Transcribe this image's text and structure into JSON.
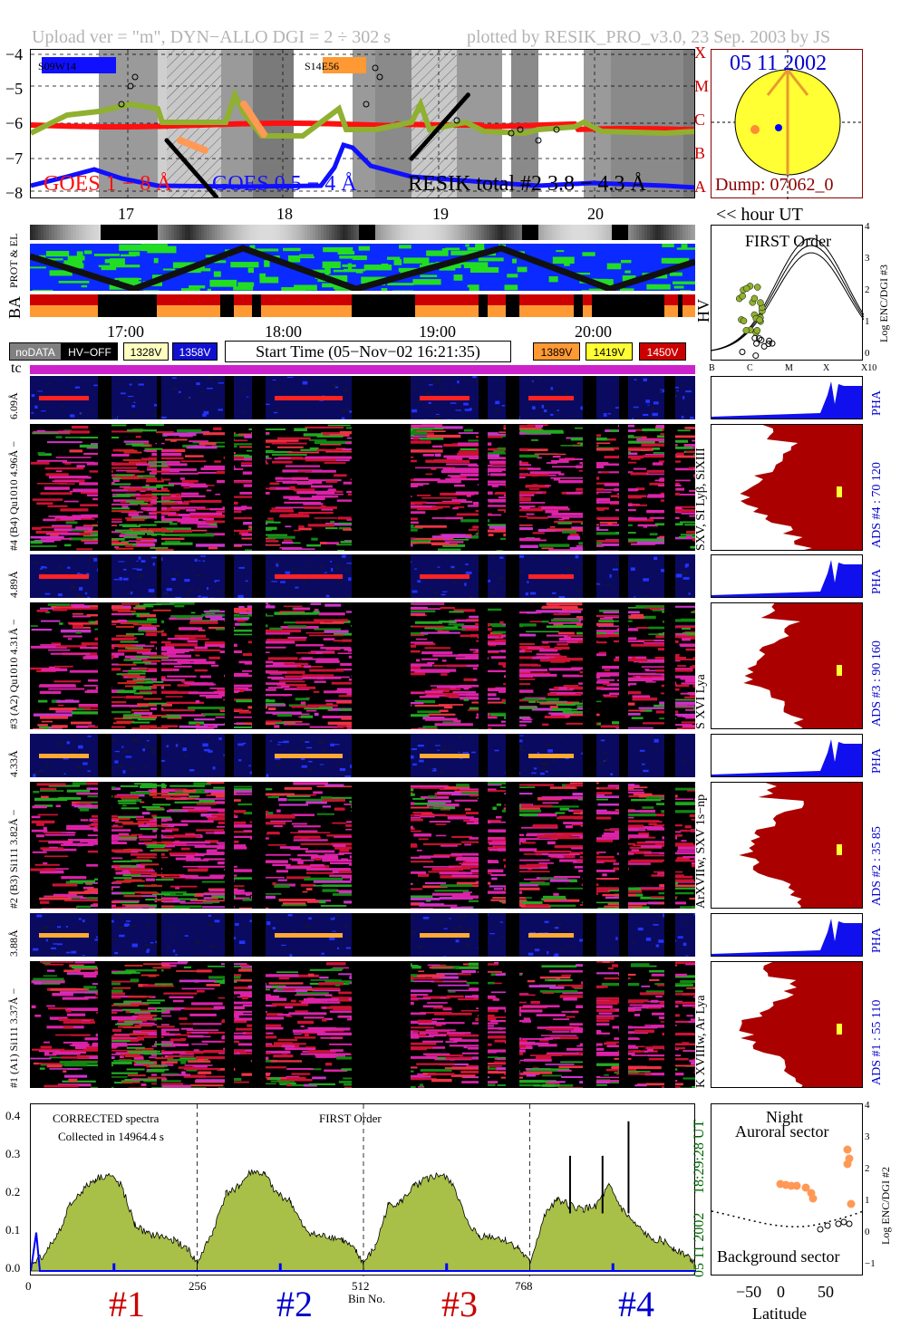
{
  "header": {
    "left": "Upload ver = \"m\", DYN−ALLO DGI =   2 ÷ 302 s",
    "right": "plotted by RESIK_PRO_v3.0, 23 Sep. 2003 by JS"
  },
  "goes_panel": {
    "yticks": [
      "−4",
      "−5",
      "−6",
      "−7",
      "−8"
    ],
    "class_letters": [
      "X",
      "M",
      "C",
      "B",
      "A"
    ],
    "legend_long": "GOES 1 − 8 Å",
    "legend_short": "GOES 0.5 − 4 Å",
    "legend_resik": "RESIK total #2  3.8 − 4.3 Å",
    "region1": "S09W14",
    "region2": "S14E56",
    "hour_labels": [
      "17",
      "18",
      "19",
      "20"
    ],
    "hour_unit": "<< hour UT"
  },
  "sun_panel": {
    "date": "05 11 2002",
    "dump": "Dump: 07062_0"
  },
  "status_rows": {
    "prot_el": "PROT & EL",
    "ba": "BA",
    "hv": "HV",
    "time_labels": [
      "17:00",
      "18:00",
      "19:00",
      "20:00"
    ]
  },
  "keys": {
    "nodata": "noDATA",
    "hvoff": "HV−OFF",
    "v1328": "1328V",
    "v1358": "1358V",
    "start_time": "Start Time (05−Nov−02 16:21:35)",
    "v1389": "1389V",
    "v1419": "1419V",
    "v1450": "1450V",
    "colors": {
      "nodata": "#808080",
      "hvoff": "#000000",
      "v1328": "#ffffc0",
      "v1358": "#1010d0",
      "v1389": "#ff9933",
      "v1419": "#ffff33",
      "v1450": "#cc0000"
    }
  },
  "first_order": {
    "title": "FIRST Order",
    "ylabel": "Log ENC/DGI #3",
    "yticks": [
      "4",
      "3",
      "2",
      "1",
      "0"
    ],
    "xticks": [
      "B",
      "C",
      "M",
      "X",
      "X10"
    ]
  },
  "tc_label": "tc",
  "detectors": [
    {
      "pha_label": "6.09Å",
      "range_label": "#4 (B4) Qu1010 4.96Å −",
      "line_label": "SXV, SI Lyβ, SiXIII",
      "ads_label": "ADS #4 :   70 120",
      "pha": "PHA"
    },
    {
      "pha_label": "4.89Å",
      "range_label": "#3 (A2) Qu1010 4.31Å −",
      "line_label": "S XVI Lya",
      "ads_label": "ADS #3 :   90 160",
      "pha": "PHA"
    },
    {
      "pha_label": "4.33Å",
      "range_label": "#2 (B3) Si111 3.82Å −",
      "line_label": "ArXVIIw, SXV 1s−np",
      "ads_label": "ADS #2 :   35  85",
      "pha": "PHA"
    },
    {
      "pha_label": "3.88Å",
      "range_label": "#1 (A1) Si111 3.37Å −",
      "line_label": "K XVIIIw, Ar Lya",
      "ads_label": "ADS #1 :   55 110",
      "pha": "PHA"
    }
  ],
  "spectrum": {
    "title": "CORRECTED spectra",
    "collected": "Collected in 14964.4 s",
    "order": "FIRST Order",
    "yticks": [
      "0.4",
      "0.3",
      "0.2",
      "0.1",
      "0.0"
    ],
    "xticks": [
      "0",
      "256",
      "512",
      "768"
    ],
    "xlabel": "Bin No.",
    "date_label": "05 11 2002",
    "time_label": "18:29:28 UT",
    "channels": [
      "#1",
      "#2",
      "#3",
      "#4"
    ],
    "channel_colors": [
      "#cc0000",
      "#0000cc",
      "#cc0000",
      "#0000cc"
    ]
  },
  "latitude": {
    "night": "Night",
    "auroral": "Auroral sector",
    "background": "Background sector",
    "ylabel": "Log ENC/DGI #2",
    "yticks": [
      "4",
      "3",
      "2",
      "1",
      "0",
      "−1"
    ],
    "xticks": [
      "−50",
      "0",
      "50"
    ],
    "xlabel": "Latitude"
  },
  "chart_data": {
    "type": "line",
    "title": "",
    "xlabel": "Bin No.",
    "ylabel": "",
    "xlim": [
      0,
      1024
    ],
    "ylim": [
      0,
      0.42
    ],
    "series": [
      {
        "name": "#1",
        "x": [
          0,
          20,
          40,
          60,
          80,
          100,
          120,
          140,
          160,
          180,
          200,
          220,
          240,
          256
        ],
        "values": [
          0.02,
          0.04,
          0.09,
          0.17,
          0.21,
          0.24,
          0.25,
          0.22,
          0.12,
          0.095,
          0.09,
          0.08,
          0.06,
          0.02
        ]
      },
      {
        "name": "#2",
        "x": [
          256,
          280,
          300,
          320,
          340,
          360,
          380,
          400,
          420,
          440,
          460,
          480,
          500,
          512
        ],
        "values": [
          0.02,
          0.1,
          0.2,
          0.22,
          0.26,
          0.25,
          0.2,
          0.18,
          0.11,
          0.09,
          0.09,
          0.08,
          0.05,
          0.02
        ]
      },
      {
        "name": "#3",
        "x": [
          512,
          530,
          550,
          570,
          590,
          610,
          630,
          650,
          670,
          690,
          710,
          730,
          750,
          768
        ],
        "values": [
          0.02,
          0.06,
          0.17,
          0.18,
          0.22,
          0.24,
          0.25,
          0.23,
          0.13,
          0.09,
          0.09,
          0.08,
          0.06,
          0.02
        ]
      },
      {
        "name": "#4",
        "x": [
          768,
          790,
          810,
          830,
          850,
          870,
          890,
          910,
          930,
          950,
          970,
          990,
          1010,
          1024
        ],
        "values": [
          0.02,
          0.14,
          0.19,
          0.17,
          0.16,
          0.17,
          0.22,
          0.16,
          0.12,
          0.09,
          0.08,
          0.06,
          0.04,
          0.02
        ]
      }
    ],
    "annotations": {
      "spikes": [
        {
          "x": 830,
          "y": 0.3
        },
        {
          "x": 880,
          "y": 0.3
        },
        {
          "x": 920,
          "y": 0.39
        }
      ]
    },
    "grid": false
  }
}
